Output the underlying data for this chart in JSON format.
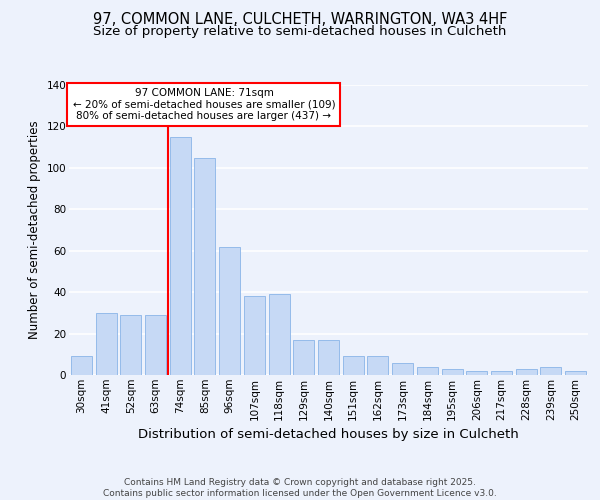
{
  "title1": "97, COMMON LANE, CULCHETH, WARRINGTON, WA3 4HF",
  "title2": "Size of property relative to semi-detached houses in Culcheth",
  "xlabel": "Distribution of semi-detached houses by size in Culcheth",
  "ylabel": "Number of semi-detached properties",
  "categories": [
    "30sqm",
    "41sqm",
    "52sqm",
    "63sqm",
    "74sqm",
    "85sqm",
    "96sqm",
    "107sqm",
    "118sqm",
    "129sqm",
    "140sqm",
    "151sqm",
    "162sqm",
    "173sqm",
    "184sqm",
    "195sqm",
    "206sqm",
    "217sqm",
    "228sqm",
    "239sqm",
    "250sqm"
  ],
  "values": [
    9,
    30,
    29,
    29,
    115,
    105,
    62,
    38,
    39,
    17,
    17,
    9,
    9,
    6,
    4,
    3,
    2,
    2,
    3,
    4,
    2
  ],
  "bar_color": "#c6d9f5",
  "bar_edge_color": "#8ab4e8",
  "vline_color": "red",
  "vline_x_index": 4,
  "annotation_text": "97 COMMON LANE: 71sqm\n← 20% of semi-detached houses are smaller (109)\n80% of semi-detached houses are larger (437) →",
  "annotation_box_color": "white",
  "annotation_box_edge": "red",
  "footer_text": "Contains HM Land Registry data © Crown copyright and database right 2025.\nContains public sector information licensed under the Open Government Licence v3.0.",
  "bg_color": "#edf2fc",
  "plot_bg_color": "#edf2fc",
  "ylim": [
    0,
    140
  ],
  "yticks": [
    0,
    20,
    40,
    60,
    80,
    100,
    120,
    140
  ],
  "grid_color": "white",
  "title1_fontsize": 10.5,
  "title2_fontsize": 9.5,
  "xlabel_fontsize": 9.5,
  "ylabel_fontsize": 8.5,
  "tick_fontsize": 7.5,
  "footer_fontsize": 6.5,
  "annot_fontsize": 7.5
}
